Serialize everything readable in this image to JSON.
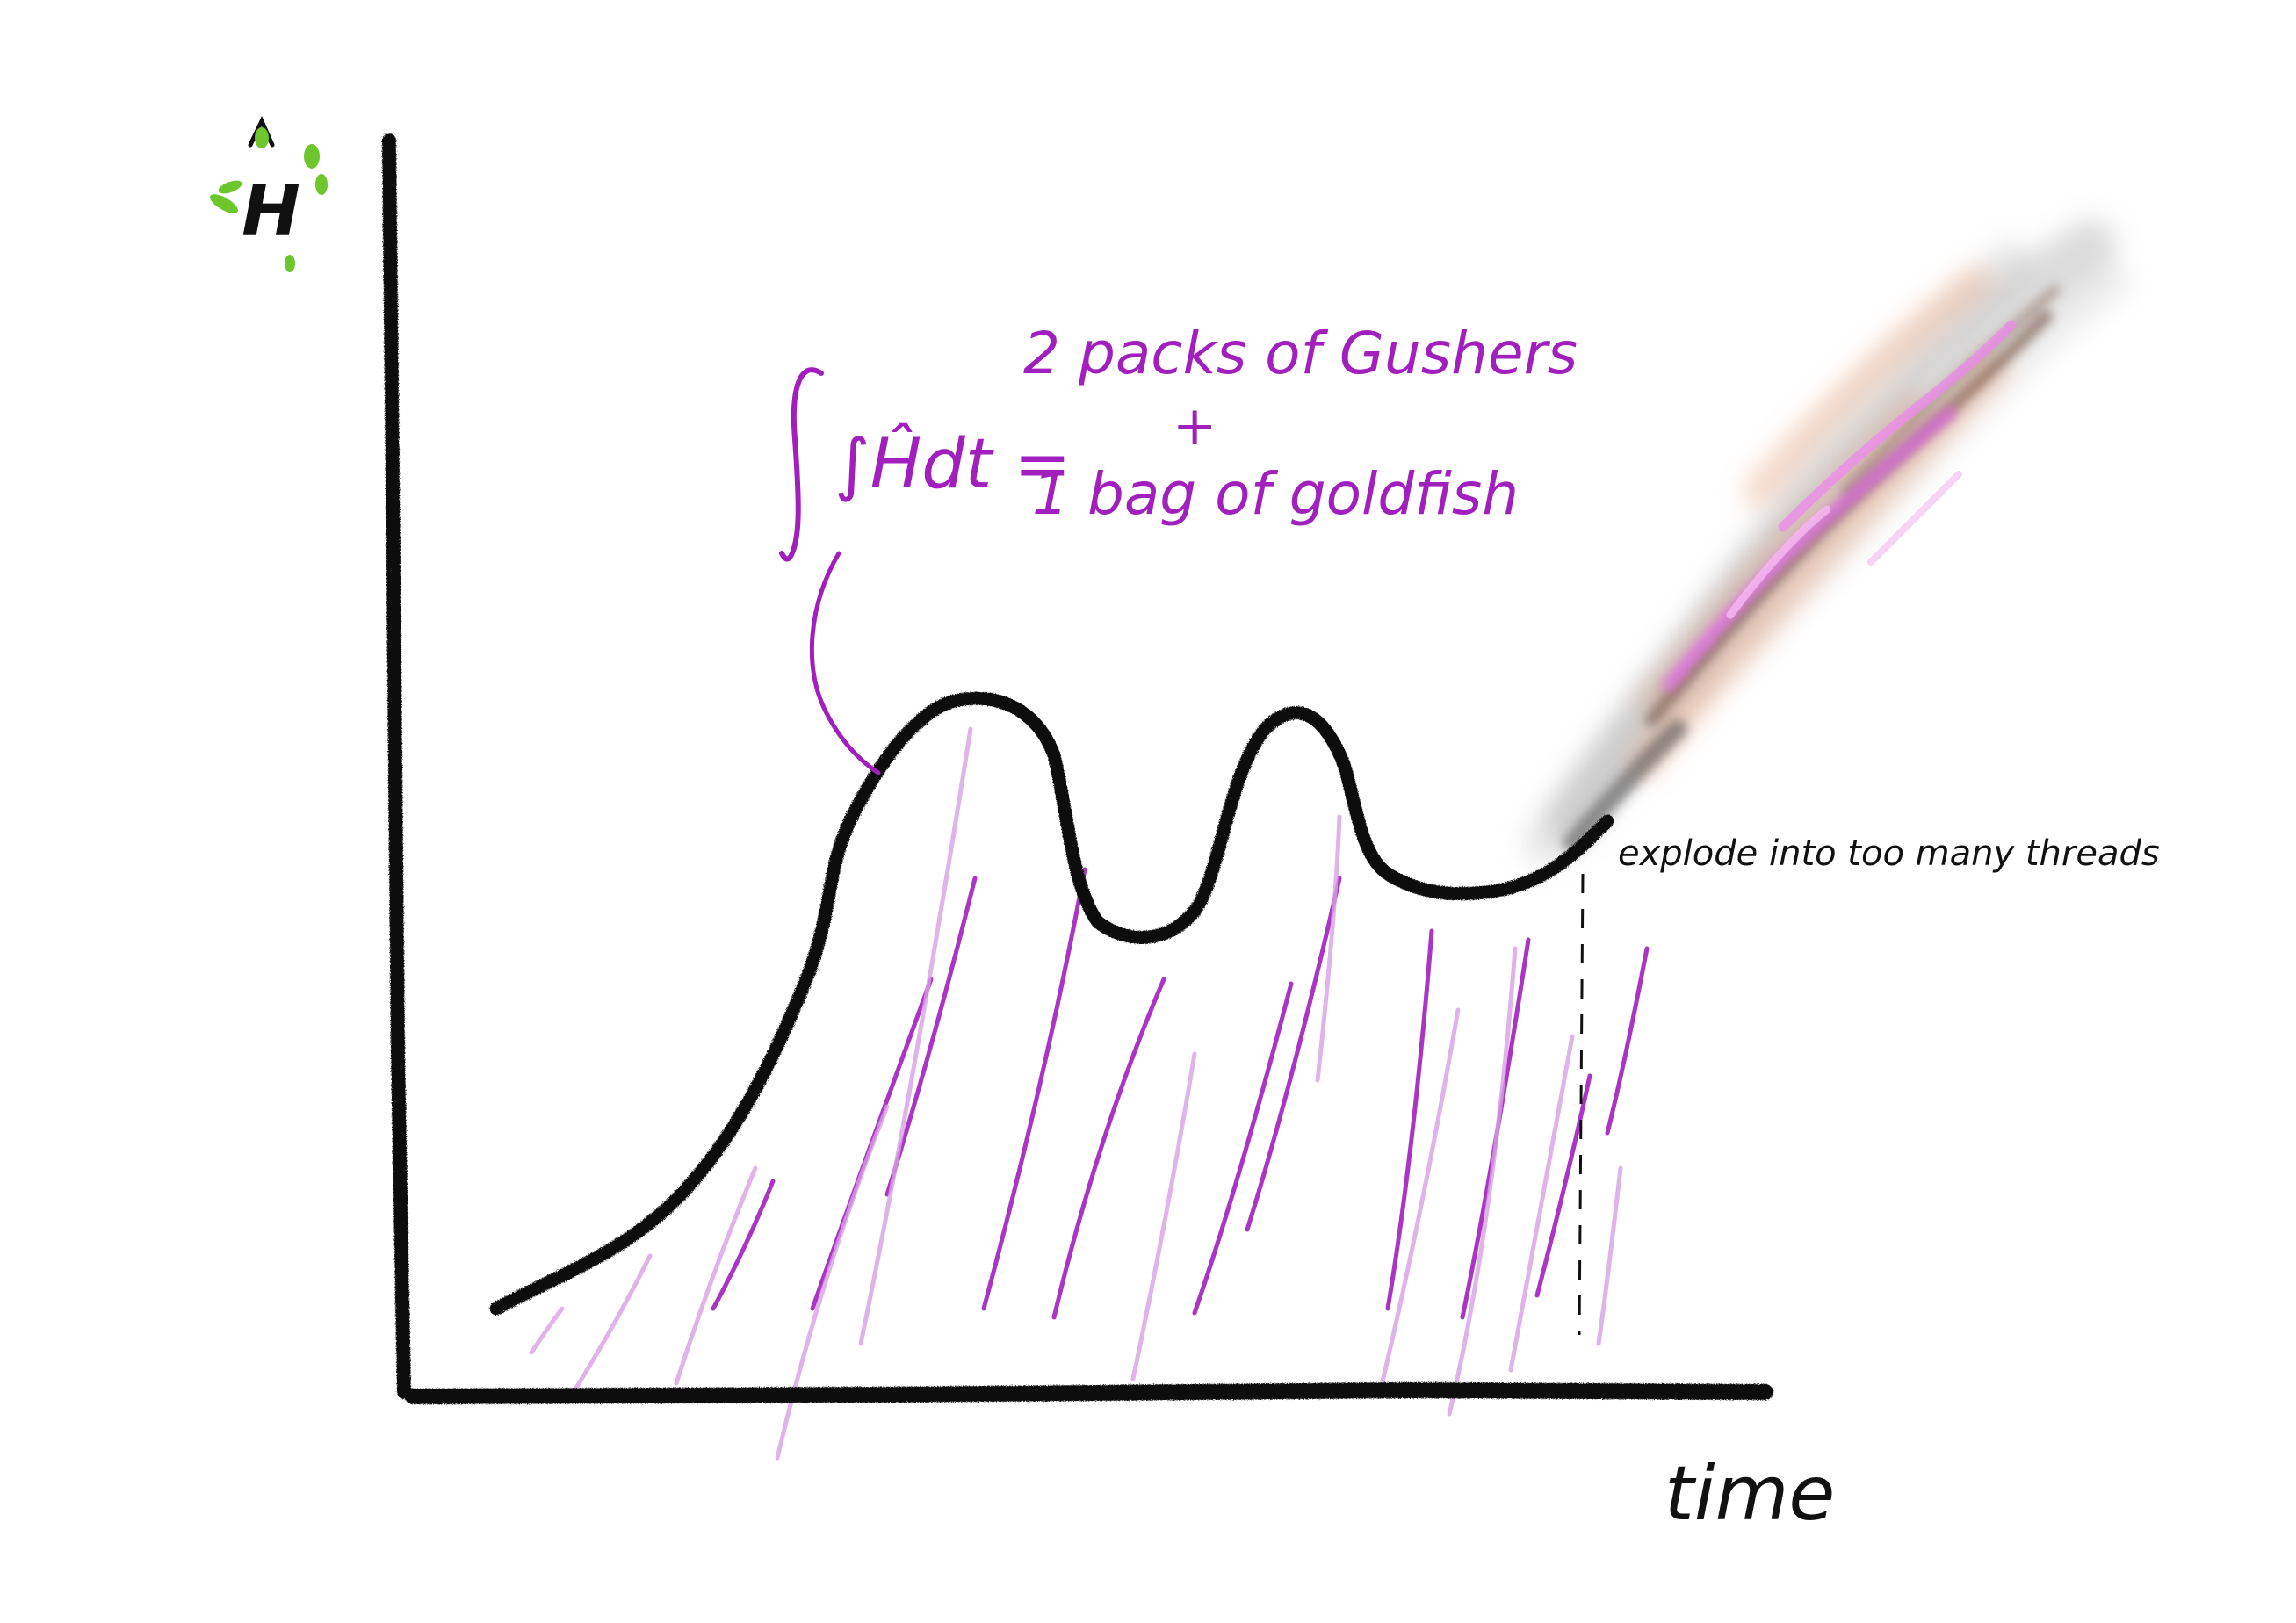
{
  "y_axis_label": "H",
  "x_axis_label": "time",
  "annotation": {
    "lhs": "∫Ĥdt =",
    "line1": "2 packs of Gushers",
    "plus": "+",
    "line2": "1 bag of goldfish"
  },
  "callout": "explode into too many threads",
  "colors": {
    "ink": "#111111",
    "purple": "#a11fbd",
    "purple_light": "#d9a0e6",
    "green": "#6cc62c",
    "orange": "#e9a27a",
    "gray": "#8a8a8a"
  }
}
